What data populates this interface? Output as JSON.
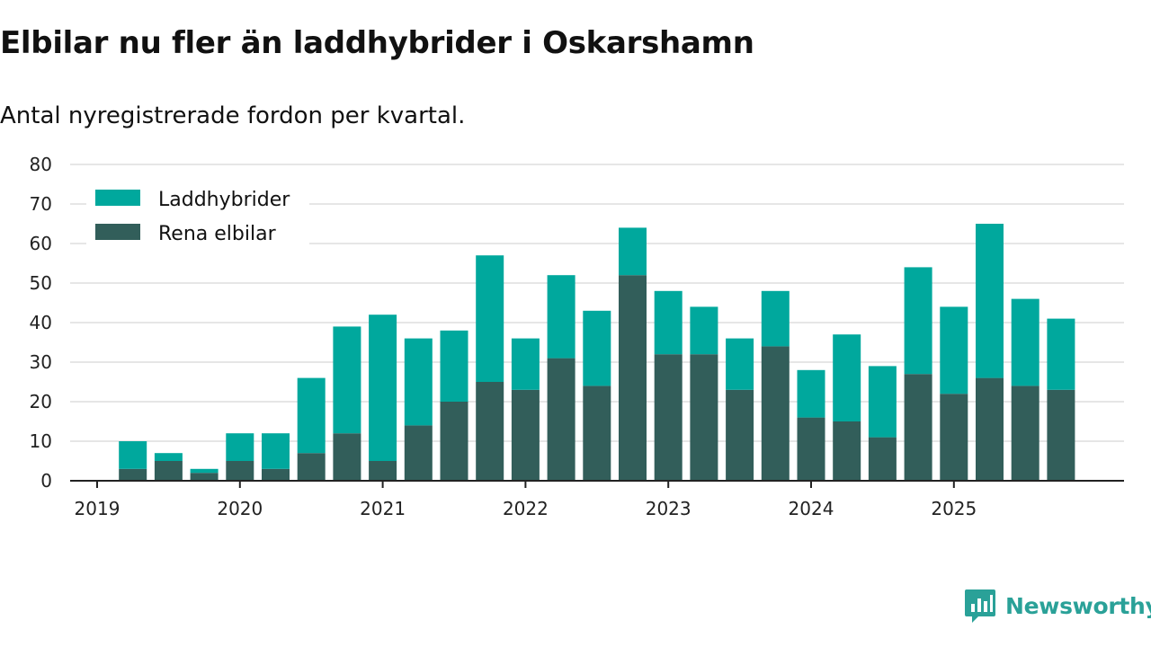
{
  "title": "Elbilar nu fler än laddhybrider i Oskarshamn",
  "subtitle": "Antal nyregistrerade fordon per kvartal.",
  "brand": {
    "name": "Newsworthy",
    "icon": "newsworthy-logo-icon"
  },
  "colors": {
    "laddhybrider": "#00a89d",
    "rena_elbilar": "#325e5a",
    "grid": "#dddddd",
    "axis": "#222222",
    "brand": "#2aa198"
  },
  "chart_data": {
    "type": "bar",
    "stacked": true,
    "categories": [
      "2019 Q1",
      "2019 Q2",
      "2019 Q3",
      "2019 Q4",
      "2020 Q1",
      "2020 Q2",
      "2020 Q3",
      "2020 Q4",
      "2021 Q1",
      "2021 Q2",
      "2021 Q3",
      "2021 Q4",
      "2022 Q1",
      "2022 Q2",
      "2022 Q3",
      "2022 Q4",
      "2023 Q1",
      "2023 Q2",
      "2023 Q3",
      "2023 Q4",
      "2024 Q1",
      "2024 Q2",
      "2024 Q3",
      "2024 Q4",
      "2025 Q1",
      "2025 Q2",
      "2025 Q3",
      "2025 Q4"
    ],
    "series": [
      {
        "name": "Rena elbilar",
        "values": [
          0,
          3,
          5,
          2,
          5,
          3,
          7,
          12,
          5,
          14,
          20,
          25,
          23,
          31,
          24,
          52,
          32,
          32,
          23,
          34,
          16,
          15,
          11,
          27,
          22,
          26,
          24,
          23
        ]
      },
      {
        "name": "Laddhybrider",
        "values": [
          0,
          7,
          2,
          1,
          7,
          9,
          19,
          27,
          37,
          22,
          18,
          32,
          13,
          21,
          19,
          12,
          16,
          12,
          13,
          14,
          12,
          22,
          18,
          27,
          22,
          39,
          22,
          18
        ]
      }
    ],
    "x_tick_labels": [
      "2019",
      "2020",
      "2021",
      "2022",
      "2023",
      "2024",
      "2025"
    ],
    "y_ticks": [
      0,
      10,
      20,
      30,
      40,
      50,
      60,
      70,
      80
    ],
    "ylim": [
      0,
      80
    ],
    "grid": true,
    "legend": {
      "placement": "top-left",
      "entries": [
        "Laddhybrider",
        "Rena elbilar"
      ]
    }
  }
}
